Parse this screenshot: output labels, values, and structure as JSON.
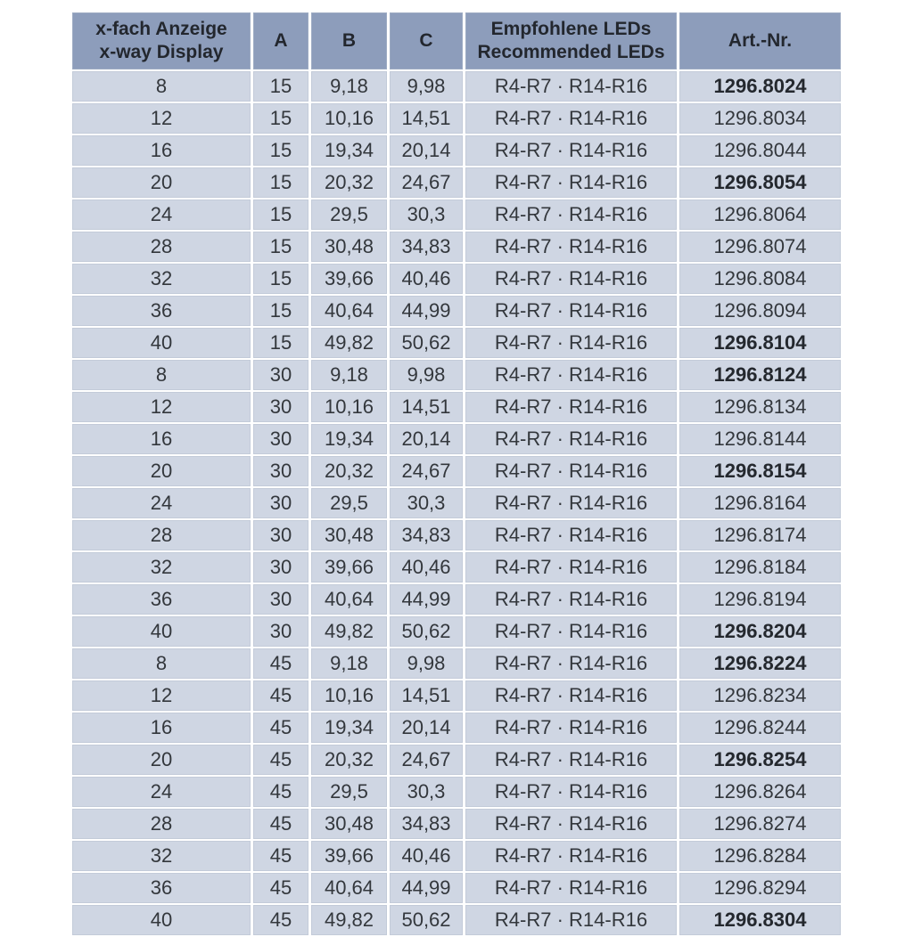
{
  "page": {
    "background": "#ffffff"
  },
  "table": {
    "colors": {
      "header_bg": "#8d9dbb",
      "row_bg": "#cfd6e3",
      "text": "#33373c",
      "separator": "#ffffff"
    },
    "headers": [
      "x-fach Anzeige\nx-way Display",
      "A",
      "B",
      "C",
      "Empfohlene LEDs\nRecommended LEDs",
      "Art.-Nr."
    ],
    "rows": [
      {
        "x": "8",
        "a": "15",
        "b": "9,18",
        "c": "9,98",
        "leds": "R4-R7 · R14-R16",
        "art": "1296.8024",
        "art_bold": true
      },
      {
        "x": "12",
        "a": "15",
        "b": "10,16",
        "c": "14,51",
        "leds": "R4-R7 · R14-R16",
        "art": "1296.8034",
        "art_bold": false
      },
      {
        "x": "16",
        "a": "15",
        "b": "19,34",
        "c": "20,14",
        "leds": "R4-R7 · R14-R16",
        "art": "1296.8044",
        "art_bold": false
      },
      {
        "x": "20",
        "a": "15",
        "b": "20,32",
        "c": "24,67",
        "leds": "R4-R7 · R14-R16",
        "art": "1296.8054",
        "art_bold": true
      },
      {
        "x": "24",
        "a": "15",
        "b": "29,5",
        "c": "30,3",
        "leds": "R4-R7 · R14-R16",
        "art": "1296.8064",
        "art_bold": false
      },
      {
        "x": "28",
        "a": "15",
        "b": "30,48",
        "c": "34,83",
        "leds": "R4-R7 · R14-R16",
        "art": "1296.8074",
        "art_bold": false
      },
      {
        "x": "32",
        "a": "15",
        "b": "39,66",
        "c": "40,46",
        "leds": "R4-R7 · R14-R16",
        "art": "1296.8084",
        "art_bold": false
      },
      {
        "x": "36",
        "a": "15",
        "b": "40,64",
        "c": "44,99",
        "leds": "R4-R7 · R14-R16",
        "art": "1296.8094",
        "art_bold": false
      },
      {
        "x": "40",
        "a": "15",
        "b": "49,82",
        "c": "50,62",
        "leds": "R4-R7 · R14-R16",
        "art": "1296.8104",
        "art_bold": true
      },
      {
        "x": "8",
        "a": "30",
        "b": "9,18",
        "c": "9,98",
        "leds": "R4-R7 · R14-R16",
        "art": "1296.8124",
        "art_bold": true
      },
      {
        "x": "12",
        "a": "30",
        "b": "10,16",
        "c": "14,51",
        "leds": "R4-R7 · R14-R16",
        "art": "1296.8134",
        "art_bold": false
      },
      {
        "x": "16",
        "a": "30",
        "b": "19,34",
        "c": "20,14",
        "leds": "R4-R7 · R14-R16",
        "art": "1296.8144",
        "art_bold": false
      },
      {
        "x": "20",
        "a": "30",
        "b": "20,32",
        "c": "24,67",
        "leds": "R4-R7 · R14-R16",
        "art": "1296.8154",
        "art_bold": true
      },
      {
        "x": "24",
        "a": "30",
        "b": "29,5",
        "c": "30,3",
        "leds": "R4-R7 · R14-R16",
        "art": "1296.8164",
        "art_bold": false
      },
      {
        "x": "28",
        "a": "30",
        "b": "30,48",
        "c": "34,83",
        "leds": "R4-R7 · R14-R16",
        "art": "1296.8174",
        "art_bold": false
      },
      {
        "x": "32",
        "a": "30",
        "b": "39,66",
        "c": "40,46",
        "leds": "R4-R7 · R14-R16",
        "art": "1296.8184",
        "art_bold": false
      },
      {
        "x": "36",
        "a": "30",
        "b": "40,64",
        "c": "44,99",
        "leds": "R4-R7 · R14-R16",
        "art": "1296.8194",
        "art_bold": false
      },
      {
        "x": "40",
        "a": "30",
        "b": "49,82",
        "c": "50,62",
        "leds": "R4-R7 · R14-R16",
        "art": "1296.8204",
        "art_bold": true
      },
      {
        "x": "8",
        "a": "45",
        "b": "9,18",
        "c": "9,98",
        "leds": "R4-R7 · R14-R16",
        "art": "1296.8224",
        "art_bold": true
      },
      {
        "x": "12",
        "a": "45",
        "b": "10,16",
        "c": "14,51",
        "leds": "R4-R7 · R14-R16",
        "art": "1296.8234",
        "art_bold": false
      },
      {
        "x": "16",
        "a": "45",
        "b": "19,34",
        "c": "20,14",
        "leds": "R4-R7 · R14-R16",
        "art": "1296.8244",
        "art_bold": false
      },
      {
        "x": "20",
        "a": "45",
        "b": "20,32",
        "c": "24,67",
        "leds": "R4-R7 · R14-R16",
        "art": "1296.8254",
        "art_bold": true
      },
      {
        "x": "24",
        "a": "45",
        "b": "29,5",
        "c": "30,3",
        "leds": "R4-R7 · R14-R16",
        "art": "1296.8264",
        "art_bold": false
      },
      {
        "x": "28",
        "a": "45",
        "b": "30,48",
        "c": "34,83",
        "leds": "R4-R7 · R14-R16",
        "art": "1296.8274",
        "art_bold": false
      },
      {
        "x": "32",
        "a": "45",
        "b": "39,66",
        "c": "40,46",
        "leds": "R4-R7 · R14-R16",
        "art": "1296.8284",
        "art_bold": false
      },
      {
        "x": "36",
        "a": "45",
        "b": "40,64",
        "c": "44,99",
        "leds": "R4-R7 · R14-R16",
        "art": "1296.8294",
        "art_bold": false
      },
      {
        "x": "40",
        "a": "45",
        "b": "49,82",
        "c": "50,62",
        "leds": "R4-R7 · R14-R16",
        "art": "1296.8304",
        "art_bold": true
      }
    ]
  }
}
